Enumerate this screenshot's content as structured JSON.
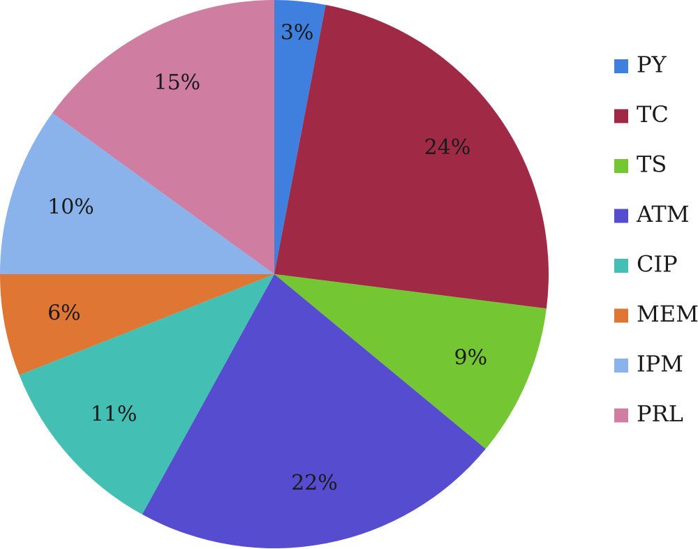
{
  "chart_data": {
    "type": "pie",
    "title": "",
    "start_angle_deg": 0,
    "direction": "clockwise",
    "legend_position": "right",
    "slices": [
      {
        "label": "PY",
        "value": 3,
        "display": "3%",
        "color": "#3f7fde"
      },
      {
        "label": "TC",
        "value": 24,
        "display": "24%",
        "color": "#a02a45"
      },
      {
        "label": "TS",
        "value": 9,
        "display": "9%",
        "color": "#74c732"
      },
      {
        "label": "ATM",
        "value": 22,
        "display": "22%",
        "color": "#564ccf"
      },
      {
        "label": "CIP",
        "value": 11,
        "display": "11%",
        "color": "#44bfb3"
      },
      {
        "label": "MEM",
        "value": 6,
        "display": "6%",
        "color": "#e07633"
      },
      {
        "label": "IPM",
        "value": 10,
        "display": "10%",
        "color": "#89b3ea"
      },
      {
        "label": "PRL",
        "value": 15,
        "display": "15%",
        "color": "#cf7ea2"
      }
    ]
  }
}
